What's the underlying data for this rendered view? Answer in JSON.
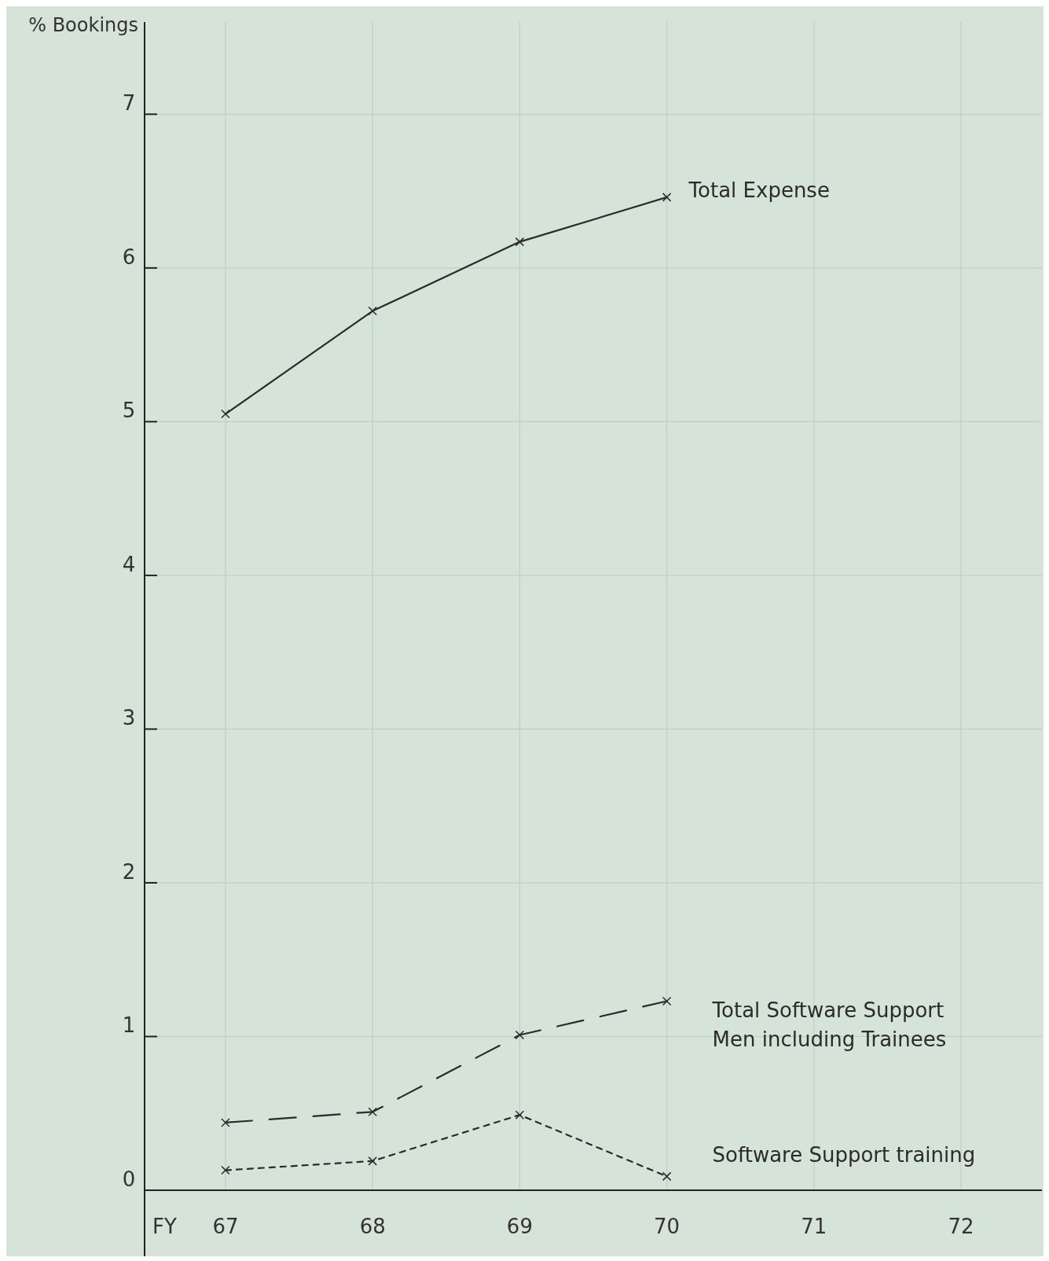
{
  "chart_data": {
    "type": "line",
    "ylabel": "% Bookings",
    "xlabel": "FY",
    "x": [
      67,
      68,
      69,
      70
    ],
    "xlim": [
      66.45,
      72.55
    ],
    "xticks": [
      67,
      68,
      69,
      70,
      71,
      72
    ],
    "ylim": [
      0,
      7.6
    ],
    "yticks": [
      0,
      1,
      2,
      3,
      4,
      5,
      6,
      7
    ],
    "grid": true,
    "marker": "cross",
    "series": [
      {
        "name": "Total Expense",
        "color": "#2b2b2b",
        "line_style": "solid",
        "values": [
          5.05,
          5.72,
          6.17,
          6.46
        ]
      },
      {
        "name": "Total Software Support Men including Trainees",
        "color": "#2b2b2b",
        "line_style": "dashed",
        "values": [
          0.44,
          0.51,
          1.01,
          1.23
        ]
      },
      {
        "name": "Software Support training",
        "color": "#2b2b2b",
        "line_style": "dotted",
        "values": [
          0.13,
          0.19,
          0.49,
          0.09
        ]
      }
    ]
  }
}
